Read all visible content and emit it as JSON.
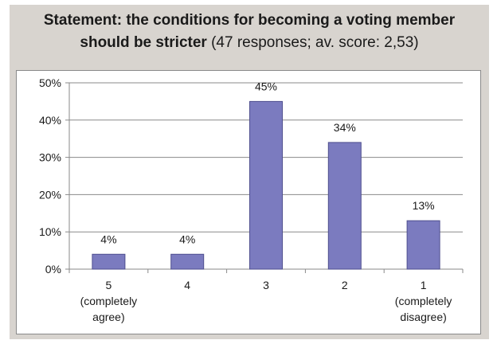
{
  "header": {
    "title_bold_line1": "Statement: the conditions for becoming a voting member",
    "title_bold_line2": "should be stricter",
    "title_rest_line2": " (47 responses; av. score: 2,53)"
  },
  "chart_data": {
    "type": "bar",
    "title": "Statement: the conditions for becoming a voting member should be stricter (47 responses; av. score: 2,53)",
    "categories": [
      [
        "5",
        "(completely",
        "agree)"
      ],
      [
        "4"
      ],
      [
        "3"
      ],
      [
        "2"
      ],
      [
        "1",
        "(completely",
        "disagree)"
      ]
    ],
    "values": [
      4,
      4,
      45,
      34,
      13
    ],
    "data_labels": [
      "4%",
      "4%",
      "45%",
      "34%",
      "13%"
    ],
    "y_ticks": [
      0,
      10,
      20,
      30,
      40,
      50
    ],
    "y_tick_labels": [
      "0%",
      "10%",
      "20%",
      "30%",
      "40%",
      "50%"
    ],
    "ylim": [
      0,
      50
    ],
    "xlabel": "",
    "ylabel": "",
    "grid": true,
    "legend": "none",
    "bar_color": "#7b7bbf",
    "bar_edge_color": "#4f4f8f",
    "grid_color": "#8a8a8a"
  }
}
